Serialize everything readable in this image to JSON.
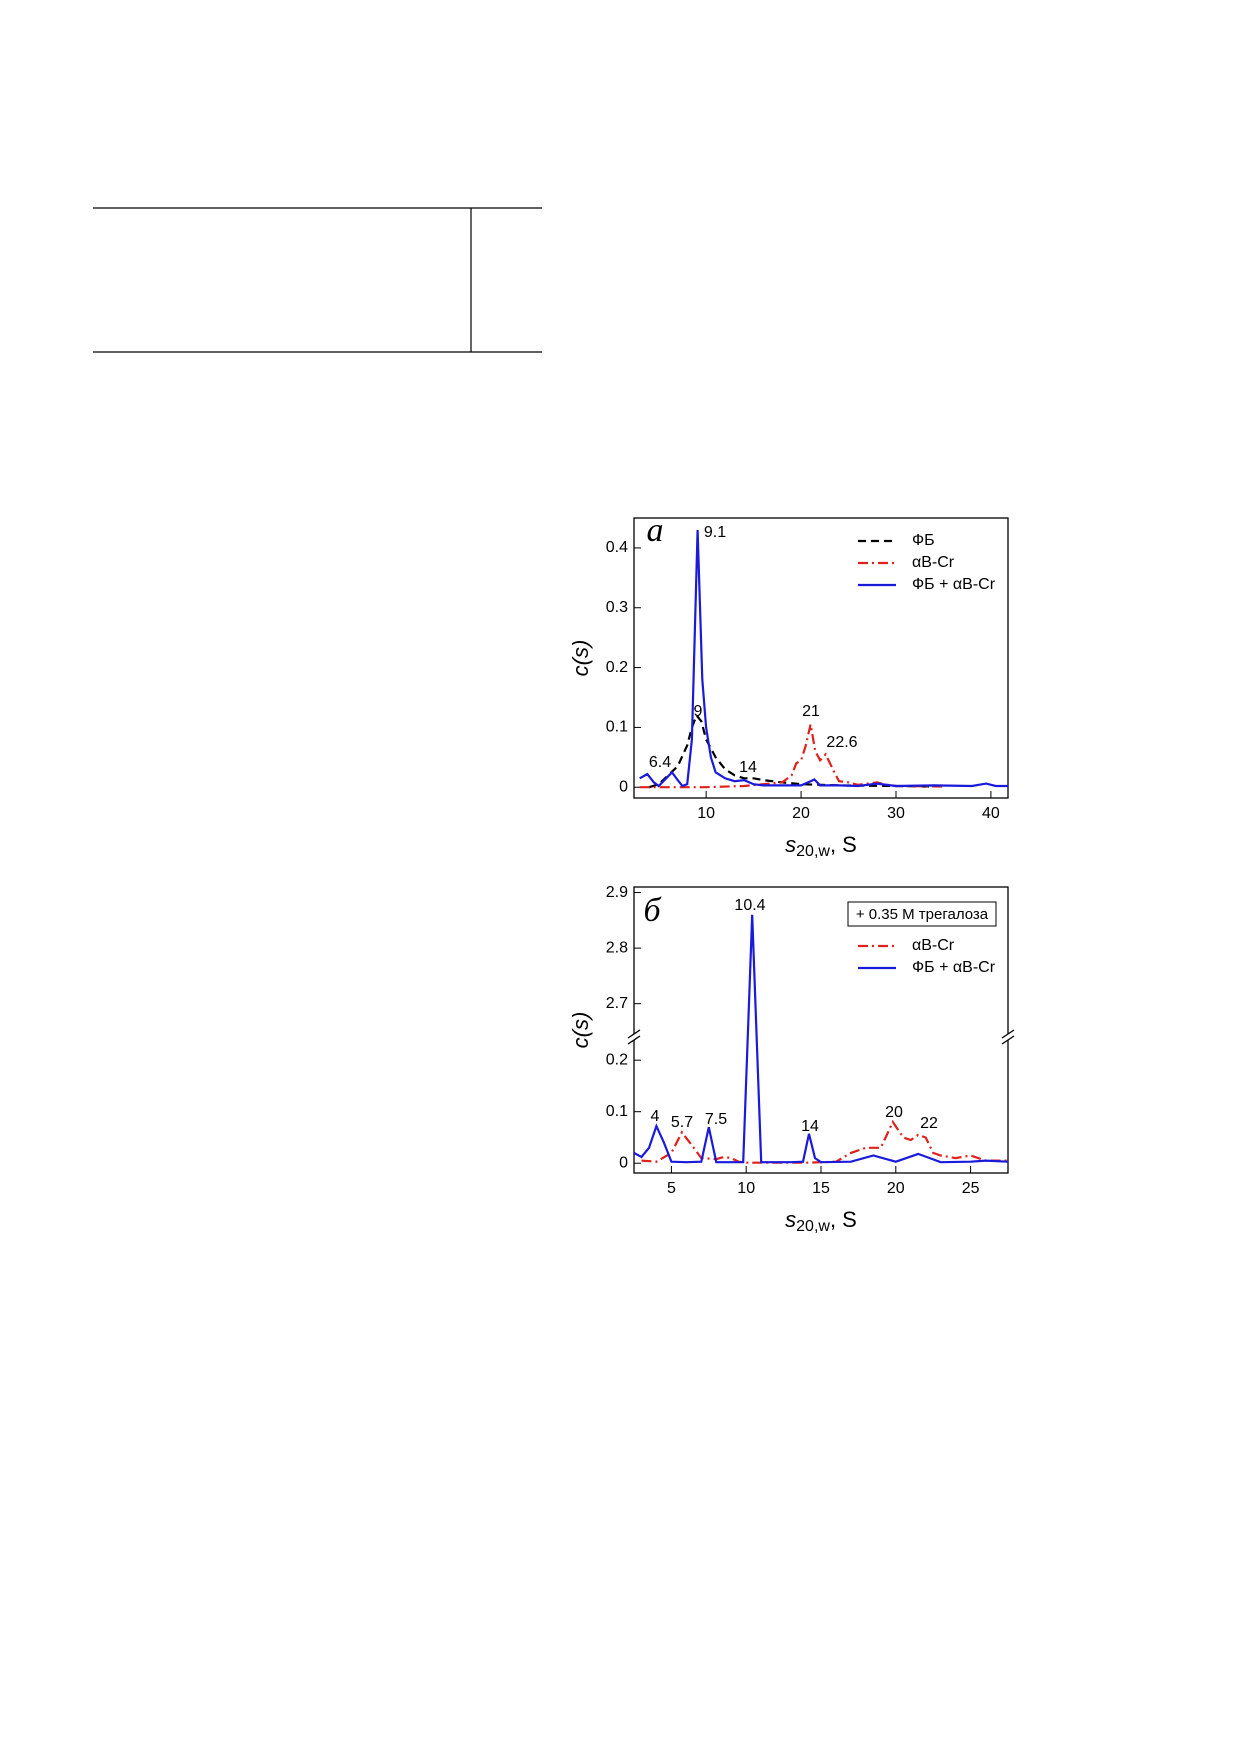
{
  "charts": [
    {
      "type": "line",
      "panel": "a",
      "x_label": "s",
      "x_label_sub": "20,w",
      "x_label_unit": ", S",
      "y_label": "c(s)",
      "xlim": [
        2.4,
        41.8
      ],
      "ylim": [
        -0.018,
        0.45
      ],
      "xticks": [
        10,
        20,
        30,
        40
      ],
      "yticks": [
        0,
        0.1,
        0.2,
        0.3,
        0.4
      ],
      "legend": "upper right",
      "series": [
        {
          "name": "ФБ",
          "color": "#000000",
          "dash": "8,5",
          "x": [
            4,
            5,
            6,
            7,
            8,
            8.5,
            9,
            9.5,
            10,
            11,
            12,
            13,
            14,
            15,
            16,
            18,
            20,
            24,
            30,
            34
          ],
          "values": [
            0,
            0.005,
            0.02,
            0.035,
            0.07,
            0.1,
            0.12,
            0.11,
            0.08,
            0.05,
            0.03,
            0.02,
            0.015,
            0.015,
            0.012,
            0.008,
            0.005,
            0.003,
            0.002,
            0.001
          ]
        },
        {
          "name": "αB-Cr",
          "color": "#e0201b",
          "dash": "10,4,2,4",
          "x": [
            3,
            10,
            14,
            16,
            18,
            19,
            19.5,
            20,
            20.5,
            21,
            21.5,
            22,
            22.6,
            23.5,
            24,
            25,
            26,
            27,
            28,
            29,
            30,
            35
          ],
          "values": [
            0,
            0,
            0.002,
            0.005,
            0.008,
            0.02,
            0.04,
            0.045,
            0.07,
            0.105,
            0.06,
            0.045,
            0.055,
            0.025,
            0.01,
            0.008,
            0.004,
            0.006,
            0.008,
            0.004,
            0.002,
            0.001
          ]
        },
        {
          "name": "ФБ + αB-Cr",
          "color": "#1a1adb",
          "dash": "",
          "x": [
            3,
            3.8,
            4.5,
            5,
            5.5,
            6.4,
            7,
            7.5,
            8,
            8.5,
            9.1,
            9.6,
            10,
            10.5,
            11,
            11.5,
            12,
            13,
            14,
            15,
            16,
            18,
            20,
            21,
            21.4,
            22,
            24,
            26,
            28,
            30,
            34,
            38,
            39.5,
            40.5,
            41.8
          ],
          "values": [
            0.015,
            0.022,
            0.008,
            0.002,
            0.01,
            0.025,
            0.012,
            0.002,
            0.005,
            0.08,
            0.43,
            0.18,
            0.1,
            0.05,
            0.025,
            0.02,
            0.015,
            0.01,
            0.012,
            0.005,
            0.003,
            0.003,
            0.003,
            0.01,
            0.013,
            0.003,
            0.003,
            0.002,
            0.006,
            0.002,
            0.003,
            0.002,
            0.006,
            0.002,
            0.002
          ]
        }
      ],
      "annotations": [
        "9.1",
        "9",
        "6.4",
        "14",
        "21",
        "22.6"
      ]
    },
    {
      "type": "line",
      "panel": "б",
      "x_label": "s",
      "x_label_sub": "20,w",
      "x_label_unit": ", S",
      "y_label": "c(s)",
      "xlim": [
        2.5,
        27.5
      ],
      "ylim": [
        -0.019,
        2.91
      ],
      "y_break": [
        0.245,
        2.64
      ],
      "xticks": [
        5,
        10,
        15,
        20,
        25
      ],
      "yticks": [
        0,
        0.1,
        0.2,
        2.7,
        2.8,
        2.9
      ],
      "legend": "upper right",
      "legend_title": "+ 0.35 M трегалоза",
      "series": [
        {
          "name": "αB-Cr",
          "color": "#e0201b",
          "dash": "10,4,2,4",
          "x": [
            3,
            4,
            5,
            5.7,
            6.5,
            7,
            8,
            8.5,
            9,
            9.5,
            10,
            14,
            16,
            17,
            18,
            19,
            19.8,
            20.5,
            21,
            21.5,
            22,
            22.5,
            23,
            24,
            25,
            26,
            27.5
          ],
          "values": [
            0.005,
            0.003,
            0.02,
            0.06,
            0.03,
            0.01,
            0.008,
            0.012,
            0.01,
            0.003,
            0.001,
            0.001,
            0.003,
            0.02,
            0.03,
            0.03,
            0.08,
            0.05,
            0.045,
            0.055,
            0.05,
            0.02,
            0.015,
            0.01,
            0.015,
            0.005,
            0.005
          ]
        },
        {
          "name": "ФБ + αB-Cr",
          "color": "#1a1adb",
          "dash": "",
          "x": [
            2.5,
            3,
            3.5,
            4,
            4.5,
            5,
            6,
            7,
            7.5,
            8,
            9,
            9.8,
            10.4,
            11,
            11.5,
            13,
            13.8,
            14.2,
            14.6,
            15,
            17,
            18.5,
            20,
            21.5,
            23,
            25,
            26,
            27.5
          ],
          "values": [
            0.02,
            0.012,
            0.03,
            0.072,
            0.04,
            0.003,
            0.002,
            0.003,
            0.07,
            0.002,
            0.002,
            0.002,
            2.86,
            0.002,
            0.002,
            0.002,
            0.003,
            0.057,
            0.01,
            0.002,
            0.003,
            0.015,
            0.003,
            0.018,
            0.002,
            0.003,
            0.005,
            0.003
          ]
        }
      ],
      "annotations": [
        "10.4",
        "4",
        "5.7",
        "7.5",
        "14",
        "20",
        "22"
      ]
    }
  ]
}
